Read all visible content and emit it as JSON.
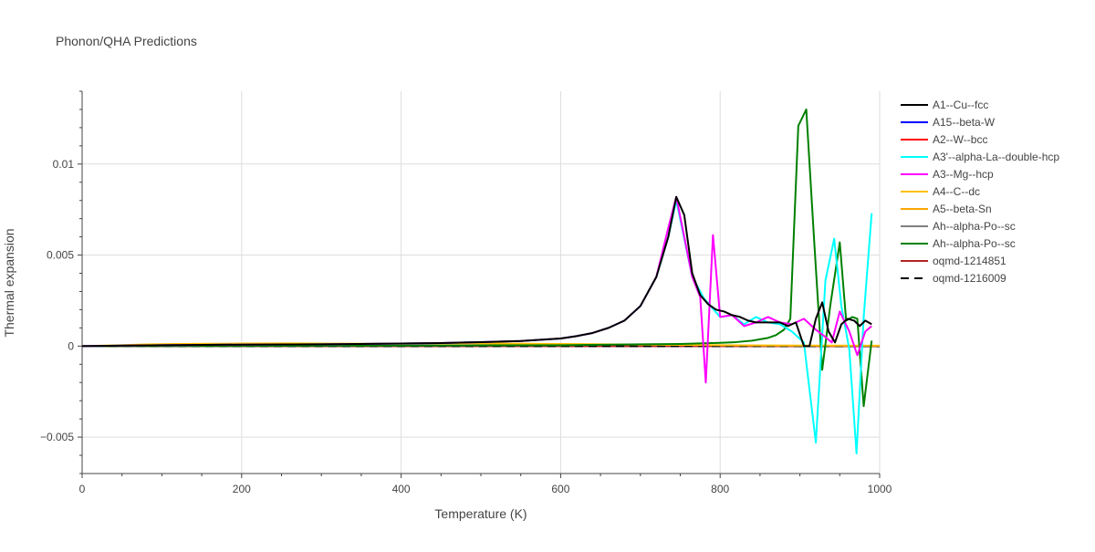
{
  "chart_data": {
    "type": "line",
    "title": "Phonon/QHA Predictions",
    "xlabel": "Temperature (K)",
    "ylabel": "Thermal expansion",
    "xlim": [
      0,
      1000
    ],
    "ylim": [
      -0.007,
      0.014
    ],
    "grid": true,
    "legend_position": "right",
    "x_ticks": [
      0,
      200,
      400,
      600,
      800,
      1000
    ],
    "x_tick_labels": [
      "0",
      "200",
      "400",
      "600",
      "800",
      "1000"
    ],
    "y_ticks": [
      -0.005,
      0,
      0.005,
      0.01
    ],
    "y_tick_labels": [
      "−0.005",
      "0",
      "0.005",
      "0.01"
    ],
    "series": [
      {
        "name": "A1--Cu--fcc",
        "color": "#000000",
        "dash": "solid",
        "points": [
          [
            0,
            0
          ],
          [
            100,
            5e-05
          ],
          [
            200,
            8e-05
          ],
          [
            300,
            0.0001
          ],
          [
            400,
            0.00014
          ],
          [
            450,
            0.00017
          ],
          [
            500,
            0.00022
          ],
          [
            550,
            0.00028
          ],
          [
            600,
            0.00042
          ],
          [
            620,
            0.00055
          ],
          [
            640,
            0.00072
          ],
          [
            660,
            0.001
          ],
          [
            680,
            0.0014
          ],
          [
            700,
            0.0022
          ],
          [
            720,
            0.0038
          ],
          [
            735,
            0.006
          ],
          [
            745,
            0.0082
          ],
          [
            755,
            0.0072
          ],
          [
            765,
            0.004
          ],
          [
            775,
            0.0028
          ],
          [
            785,
            0.0023
          ],
          [
            795,
            0.002
          ],
          [
            805,
            0.0019
          ],
          [
            815,
            0.0017
          ],
          [
            825,
            0.0016
          ],
          [
            835,
            0.0014
          ],
          [
            845,
            0.0013
          ],
          [
            855,
            0.0013
          ],
          [
            865,
            0.0013
          ],
          [
            875,
            0.0013
          ],
          [
            885,
            0.0011
          ],
          [
            895,
            0.0013
          ],
          [
            905,
            0
          ],
          [
            912,
            0
          ],
          [
            920,
            0.0015
          ],
          [
            928,
            0.0024
          ],
          [
            936,
            0.0008
          ],
          [
            944,
            0.0002
          ],
          [
            952,
            0.0012
          ],
          [
            960,
            0.0015
          ],
          [
            968,
            0.0014
          ],
          [
            975,
            0.0011
          ],
          [
            982,
            0.0014
          ],
          [
            990,
            0.0012
          ]
        ]
      },
      {
        "name": "A15--beta-W",
        "color": "#0000ff",
        "dash": "solid",
        "points": [
          [
            0,
            0
          ],
          [
            1000,
            0
          ]
        ]
      },
      {
        "name": "A2--W--bcc",
        "color": "#ff0000",
        "dash": "solid",
        "points": [
          [
            0,
            0
          ],
          [
            1000,
            0
          ]
        ]
      },
      {
        "name": "A3'--alpha-La--double-hcp",
        "color": "#00ffff",
        "dash": "solid",
        "points": [
          [
            0,
            0
          ],
          [
            100,
            5e-05
          ],
          [
            200,
            8e-05
          ],
          [
            300,
            0.0001
          ],
          [
            400,
            0.00014
          ],
          [
            450,
            0.00017
          ],
          [
            500,
            0.00022
          ],
          [
            550,
            0.00028
          ],
          [
            600,
            0.00042
          ],
          [
            620,
            0.00055
          ],
          [
            640,
            0.00072
          ],
          [
            660,
            0.001
          ],
          [
            680,
            0.0014
          ],
          [
            700,
            0.0022
          ],
          [
            720,
            0.0038
          ],
          [
            735,
            0.006
          ],
          [
            745,
            0.008
          ],
          [
            765,
            0.0038
          ],
          [
            780,
            0.0026
          ],
          [
            800,
            0.0016
          ],
          [
            815,
            0.0017
          ],
          [
            830,
            0.0012
          ],
          [
            845,
            0.0016
          ],
          [
            860,
            0.0013
          ],
          [
            875,
            0.0012
          ],
          [
            890,
            0.0008
          ],
          [
            905,
            0.0002
          ],
          [
            920,
            -0.0053
          ],
          [
            932,
            0.0036
          ],
          [
            943,
            0.0059
          ],
          [
            952,
            0.0022
          ],
          [
            962,
            -0.0002
          ],
          [
            971,
            -0.0059
          ],
          [
            980,
            0.0016
          ],
          [
            990,
            0.0073
          ]
        ]
      },
      {
        "name": "A3--Mg--hcp",
        "color": "#ff00ff",
        "dash": "solid",
        "points": [
          [
            0,
            0
          ],
          [
            100,
            5e-05
          ],
          [
            200,
            8e-05
          ],
          [
            300,
            0.0001
          ],
          [
            400,
            0.00014
          ],
          [
            450,
            0.00017
          ],
          [
            500,
            0.00022
          ],
          [
            550,
            0.00028
          ],
          [
            600,
            0.00042
          ],
          [
            620,
            0.00055
          ],
          [
            640,
            0.00072
          ],
          [
            660,
            0.001
          ],
          [
            680,
            0.0014
          ],
          [
            700,
            0.0022
          ],
          [
            720,
            0.0038
          ],
          [
            735,
            0.0065
          ],
          [
            745,
            0.0082
          ],
          [
            755,
            0.006
          ],
          [
            765,
            0.0038
          ],
          [
            775,
            0.0027
          ],
          [
            782,
            -0.002
          ],
          [
            791,
            0.0061
          ],
          [
            800,
            0.0016
          ],
          [
            815,
            0.0017
          ],
          [
            830,
            0.0011
          ],
          [
            845,
            0.0013
          ],
          [
            860,
            0.0016
          ],
          [
            875,
            0.0013
          ],
          [
            890,
            0.0012
          ],
          [
            905,
            0.0015
          ],
          [
            920,
            0.0009
          ],
          [
            932,
            0.0005
          ],
          [
            940,
            0.0002
          ],
          [
            950,
            0.0019
          ],
          [
            962,
            0.0008
          ],
          [
            972,
            -0.0005
          ],
          [
            982,
            0.0008
          ],
          [
            990,
            0.0011
          ]
        ]
      },
      {
        "name": "A4--C--dc",
        "color": "#ffbf00",
        "dash": "solid",
        "points": [
          [
            0,
            0
          ],
          [
            40,
            4e-05
          ],
          [
            80,
            9e-05
          ],
          [
            120,
            0.00012
          ],
          [
            200,
            0.00014
          ],
          [
            260,
            0.00015
          ],
          [
            300,
            0.00014
          ],
          [
            350,
            0.00013
          ],
          [
            400,
            0.00014
          ],
          [
            500,
            0.00015
          ],
          [
            600,
            0.00012
          ],
          [
            700,
            8e-05
          ],
          [
            800,
            5e-05
          ],
          [
            900,
            3e-05
          ],
          [
            1000,
            2e-05
          ]
        ]
      },
      {
        "name": "A5--beta-Sn",
        "color": "#ffa500",
        "dash": "solid",
        "points": [
          [
            0,
            0
          ],
          [
            1000,
            0
          ]
        ]
      },
      {
        "name": "Ah--alpha-Po--sc",
        "color": "#808080",
        "dash": "solid",
        "points": [
          [
            0,
            0
          ],
          [
            1000,
            0
          ]
        ]
      },
      {
        "name": "Ah--alpha-Po--sc",
        "color": "#008000",
        "dash": "solid",
        "points": [
          [
            0,
            0
          ],
          [
            300,
            2e-05
          ],
          [
            500,
            4e-05
          ],
          [
            600,
            5e-05
          ],
          [
            700,
            0.0001
          ],
          [
            750,
            0.00012
          ],
          [
            800,
            0.00018
          ],
          [
            820,
            0.00022
          ],
          [
            840,
            0.0003
          ],
          [
            860,
            0.00045
          ],
          [
            870,
            0.0006
          ],
          [
            880,
            0.0009
          ],
          [
            888,
            0.0015
          ],
          [
            898,
            0.0121
          ],
          [
            908,
            0.013
          ],
          [
            918,
            0.0057
          ],
          [
            928,
            -0.0013
          ],
          [
            938,
            0.0022
          ],
          [
            950,
            0.0057
          ],
          [
            958,
            0.0014
          ],
          [
            966,
            0.0016
          ],
          [
            972,
            0.0015
          ],
          [
            980,
            -0.0033
          ],
          [
            990,
            0.0003
          ]
        ]
      },
      {
        "name": "oqmd-1214851",
        "color": "#b22222",
        "dash": "solid",
        "points": [
          [
            0,
            0
          ],
          [
            1000,
            0
          ]
        ]
      },
      {
        "name": "oqmd-1216009",
        "color": "#000000",
        "dash": "dash",
        "points": [
          [
            0,
            0
          ],
          [
            1000,
            0
          ]
        ]
      }
    ]
  }
}
